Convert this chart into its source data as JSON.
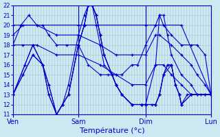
{
  "xlabel": "Température (°c)",
  "background_color": "#cce8f0",
  "grid_color": "#aaccdd",
  "line_color": "#0000cc",
  "ylim": [
    11,
    22
  ],
  "yticks": [
    11,
    12,
    13,
    14,
    15,
    16,
    17,
    18,
    19,
    20,
    21,
    22
  ],
  "day_labels": [
    "Ven",
    "Sam",
    "Dim",
    "Lun"
  ],
  "day_positions": [
    0,
    0.33,
    0.67,
    1.0
  ],
  "series": [
    {
      "points": [
        [
          0,
          18
        ],
        [
          0.04,
          20
        ],
        [
          0.08,
          21
        ],
        [
          0.12,
          20
        ],
        [
          0.15,
          20
        ],
        [
          0.18,
          19
        ],
        [
          0.22,
          18
        ],
        [
          0.27,
          18
        ],
        [
          0.33,
          18
        ],
        [
          0.38,
          16
        ],
        [
          0.44,
          15
        ],
        [
          0.48,
          15
        ],
        [
          0.52,
          15
        ],
        [
          0.55,
          15
        ],
        [
          0.6,
          16
        ],
        [
          0.63,
          16
        ],
        [
          0.67,
          18
        ],
        [
          0.72,
          20
        ],
        [
          0.74,
          21
        ],
        [
          0.76,
          20
        ],
        [
          0.8,
          19
        ],
        [
          0.85,
          18
        ],
        [
          0.9,
          18
        ],
        [
          0.93,
          18
        ],
        [
          0.97,
          17
        ],
        [
          1.0,
          13
        ]
      ]
    },
    {
      "points": [
        [
          0,
          20
        ],
        [
          0.33,
          20
        ],
        [
          0.67,
          20
        ],
        [
          0.85,
          20
        ],
        [
          1.0,
          13
        ]
      ]
    },
    {
      "points": [
        [
          0,
          19
        ],
        [
          0.05,
          20
        ],
        [
          0.12,
          20
        ],
        [
          0.22,
          19
        ],
        [
          0.33,
          19
        ],
        [
          0.44,
          18
        ],
        [
          0.52,
          17
        ],
        [
          0.6,
          17
        ],
        [
          0.67,
          17
        ],
        [
          0.72,
          19
        ],
        [
          0.74,
          19
        ],
        [
          0.8,
          18
        ],
        [
          0.85,
          17
        ],
        [
          0.9,
          16
        ],
        [
          0.93,
          15
        ],
        [
          0.97,
          14
        ],
        [
          1.0,
          13
        ]
      ]
    },
    {
      "points": [
        [
          0,
          18
        ],
        [
          0.05,
          18
        ],
        [
          0.12,
          18
        ],
        [
          0.22,
          17
        ],
        [
          0.33,
          17
        ],
        [
          0.44,
          16
        ],
        [
          0.52,
          15
        ],
        [
          0.6,
          14
        ],
        [
          0.67,
          14
        ],
        [
          0.72,
          16
        ],
        [
          0.76,
          16
        ],
        [
          0.8,
          15
        ],
        [
          0.85,
          14
        ],
        [
          0.9,
          13
        ],
        [
          0.95,
          13
        ],
        [
          1.0,
          13
        ]
      ]
    },
    {
      "points": [
        [
          0,
          13
        ],
        [
          0.05,
          15
        ],
        [
          0.1,
          17
        ],
        [
          0.15,
          16
        ],
        [
          0.18,
          14
        ],
        [
          0.22,
          11
        ],
        [
          0.25,
          12
        ],
        [
          0.28,
          13
        ],
        [
          0.33,
          18
        ],
        [
          0.36,
          20
        ],
        [
          0.38,
          22
        ],
        [
          0.4,
          22
        ],
        [
          0.42,
          21
        ],
        [
          0.44,
          19
        ],
        [
          0.46,
          17
        ],
        [
          0.5,
          15
        ],
        [
          0.52,
          14
        ],
        [
          0.55,
          13
        ],
        [
          0.6,
          12
        ],
        [
          0.65,
          12
        ],
        [
          0.67,
          12
        ],
        [
          0.7,
          12
        ],
        [
          0.72,
          12
        ],
        [
          0.74,
          13
        ],
        [
          0.76,
          15
        ],
        [
          0.78,
          16
        ],
        [
          0.8,
          16
        ],
        [
          0.82,
          14
        ],
        [
          0.84,
          13
        ],
        [
          0.85,
          12
        ],
        [
          0.88,
          13
        ],
        [
          0.9,
          13
        ],
        [
          0.93,
          13
        ],
        [
          0.97,
          13
        ],
        [
          1.0,
          13
        ]
      ]
    },
    {
      "points": [
        [
          0,
          13
        ],
        [
          0.05,
          15
        ],
        [
          0.1,
          17
        ],
        [
          0.15,
          16
        ],
        [
          0.18,
          14
        ],
        [
          0.22,
          11
        ],
        [
          0.25,
          12
        ],
        [
          0.28,
          13
        ],
        [
          0.33,
          18
        ],
        [
          0.36,
          20
        ],
        [
          0.38,
          22
        ],
        [
          0.4,
          22
        ],
        [
          0.42,
          21
        ],
        [
          0.44,
          19
        ],
        [
          0.46,
          17
        ],
        [
          0.5,
          15
        ],
        [
          0.52,
          14
        ],
        [
          0.55,
          13
        ],
        [
          0.6,
          12
        ],
        [
          0.65,
          12
        ],
        [
          0.67,
          12
        ],
        [
          0.72,
          12
        ],
        [
          0.74,
          13
        ],
        [
          0.76,
          15
        ],
        [
          0.78,
          16
        ],
        [
          0.8,
          16
        ],
        [
          0.82,
          14
        ],
        [
          0.84,
          13
        ],
        [
          0.85,
          12
        ],
        [
          0.9,
          13
        ],
        [
          1.0,
          13
        ]
      ]
    },
    {
      "points": [
        [
          0,
          13
        ],
        [
          0.06,
          16
        ],
        [
          0.1,
          18
        ],
        [
          0.15,
          16
        ],
        [
          0.18,
          13
        ],
        [
          0.22,
          11
        ],
        [
          0.25,
          12
        ],
        [
          0.28,
          13
        ],
        [
          0.33,
          18
        ],
        [
          0.36,
          20
        ],
        [
          0.38,
          22
        ],
        [
          0.4,
          22
        ],
        [
          0.42,
          21
        ],
        [
          0.44,
          19
        ],
        [
          0.46,
          17
        ],
        [
          0.5,
          15
        ],
        [
          0.52,
          14
        ],
        [
          0.55,
          13
        ],
        [
          0.6,
          12
        ],
        [
          0.65,
          12
        ],
        [
          0.67,
          12
        ],
        [
          0.72,
          12
        ],
        [
          0.74,
          13
        ],
        [
          0.76,
          15
        ],
        [
          0.8,
          16
        ],
        [
          0.82,
          14
        ],
        [
          0.84,
          13
        ],
        [
          0.85,
          12
        ],
        [
          0.9,
          13
        ],
        [
          1.0,
          13
        ]
      ]
    },
    {
      "points": [
        [
          0,
          13
        ],
        [
          0.06,
          16
        ],
        [
          0.1,
          18
        ],
        [
          0.15,
          16
        ],
        [
          0.18,
          13
        ],
        [
          0.22,
          11
        ],
        [
          0.25,
          12
        ],
        [
          0.28,
          14
        ],
        [
          0.33,
          19
        ],
        [
          0.36,
          21
        ],
        [
          0.38,
          22
        ],
        [
          0.4,
          22
        ],
        [
          0.42,
          20
        ],
        [
          0.44,
          18
        ],
        [
          0.46,
          16
        ],
        [
          0.5,
          15
        ],
        [
          0.52,
          14
        ],
        [
          0.55,
          13
        ],
        [
          0.6,
          12
        ],
        [
          0.65,
          12
        ],
        [
          0.67,
          12
        ],
        [
          0.72,
          16
        ],
        [
          0.74,
          21
        ],
        [
          0.76,
          21
        ],
        [
          0.78,
          19
        ],
        [
          0.8,
          17
        ],
        [
          0.85,
          15
        ],
        [
          0.9,
          14
        ],
        [
          0.93,
          13
        ],
        [
          0.97,
          13
        ],
        [
          1.0,
          13
        ]
      ]
    }
  ]
}
